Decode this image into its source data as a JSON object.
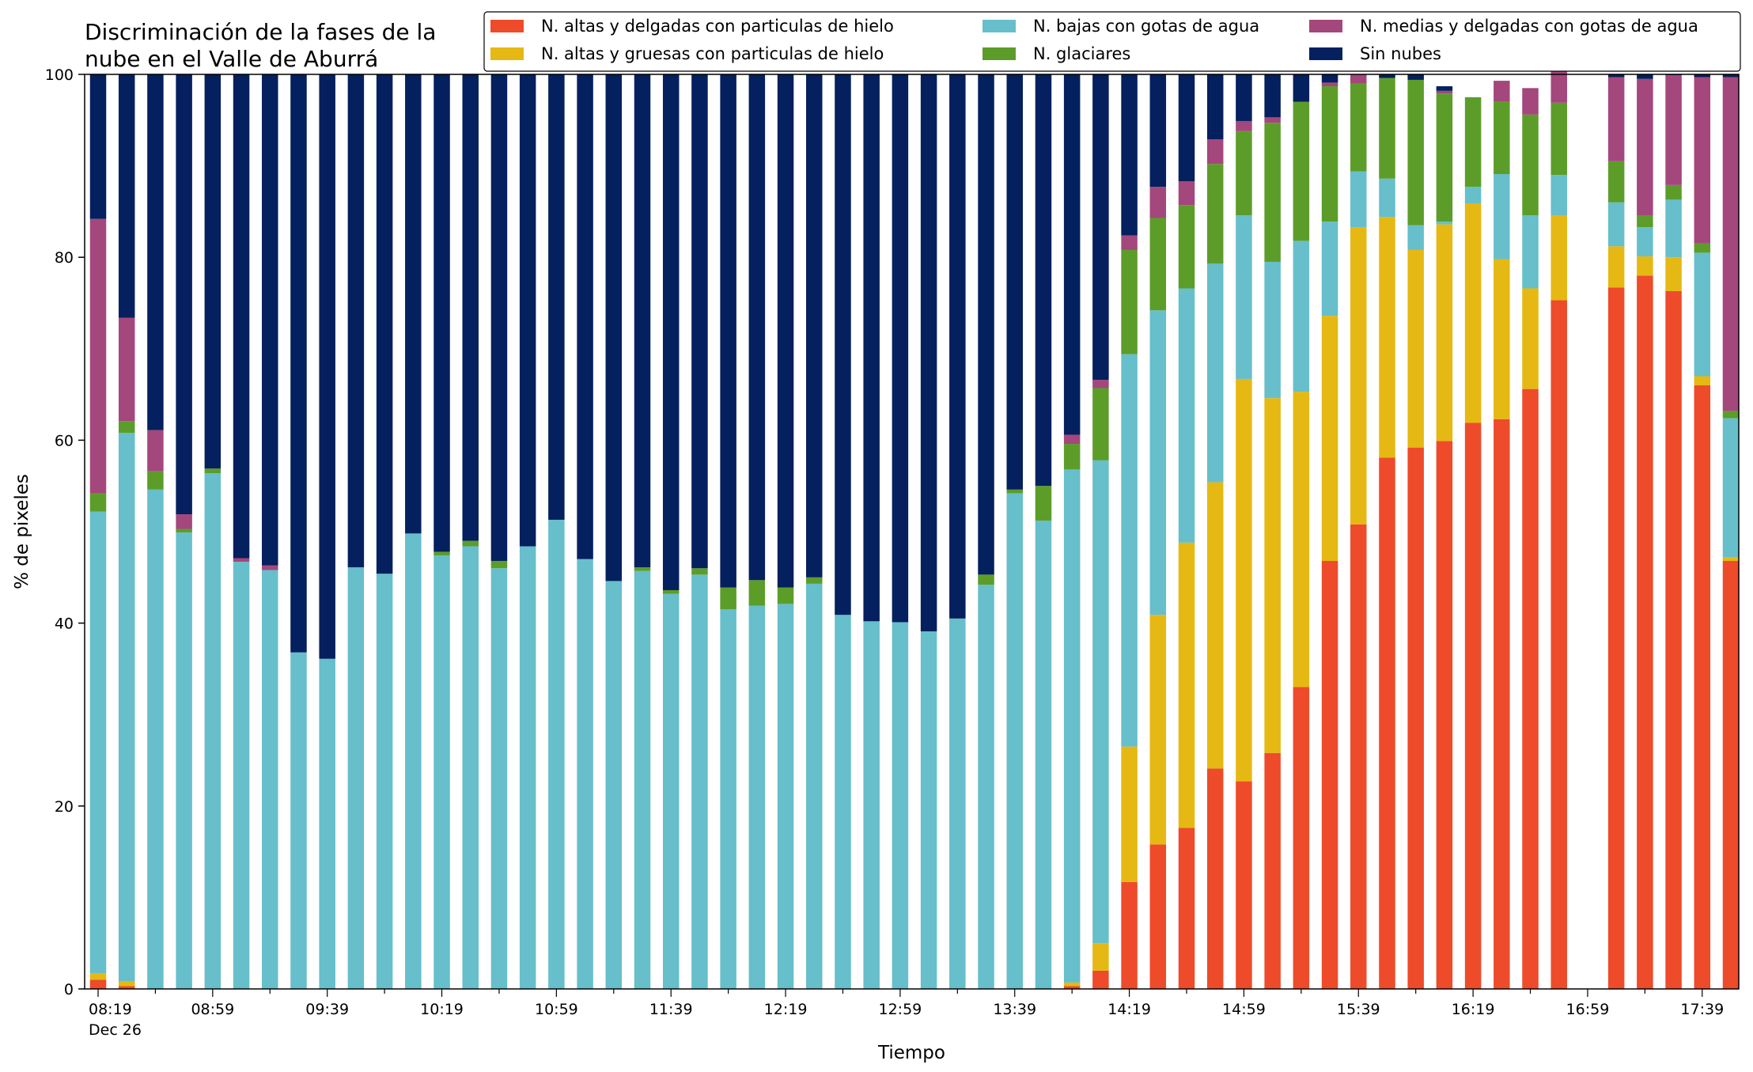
{
  "chart_data": {
    "type": "bar",
    "stacked": true,
    "title_lines": [
      "Discriminación de la fases de la",
      "nube en el Valle de Aburrá"
    ],
    "xlabel": "Tiempo",
    "ylabel": "% de pixeles",
    "ylim": [
      0,
      100
    ],
    "yticks": [
      0,
      20,
      40,
      60,
      80,
      100
    ],
    "grid": false,
    "legend_position": "top-right",
    "x_interval_minutes": 10,
    "x_start": "08:19",
    "x_end": "17:49",
    "x_tick_labels": [
      {
        "time": "08:19",
        "label": "08:19",
        "sublabel": "Dec 26"
      },
      {
        "time": "08:59",
        "label": "08:59"
      },
      {
        "time": "09:39",
        "label": "09:39"
      },
      {
        "time": "10:19",
        "label": "10:19"
      },
      {
        "time": "10:59",
        "label": "10:59"
      },
      {
        "time": "11:39",
        "label": "11:39"
      },
      {
        "time": "12:19",
        "label": "12:19"
      },
      {
        "time": "12:59",
        "label": "12:59"
      },
      {
        "time": "13:39",
        "label": "13:39"
      },
      {
        "time": "14:19",
        "label": "14:19"
      },
      {
        "time": "14:59",
        "label": "14:59"
      },
      {
        "time": "15:39",
        "label": "15:39"
      },
      {
        "time": "16:19",
        "label": "16:19"
      },
      {
        "time": "16:59",
        "label": "16:59"
      },
      {
        "time": "17:39",
        "label": "17:39"
      }
    ],
    "x": [
      "08:19",
      "08:29",
      "08:39",
      "08:49",
      "08:59",
      "09:09",
      "09:19",
      "09:29",
      "09:39",
      "09:49",
      "09:59",
      "10:09",
      "10:19",
      "10:29",
      "10:39",
      "10:49",
      "10:59",
      "11:09",
      "11:19",
      "11:29",
      "11:39",
      "11:49",
      "11:59",
      "12:09",
      "12:19",
      "12:29",
      "12:39",
      "12:49",
      "12:59",
      "13:09",
      "13:19",
      "13:29",
      "13:39",
      "13:49",
      "13:59",
      "14:09",
      "14:19",
      "14:29",
      "14:39",
      "14:49",
      "14:59",
      "15:09",
      "15:19",
      "15:29",
      "15:39",
      "15:49",
      "15:59",
      "16:09",
      "16:19",
      "16:29",
      "16:39",
      "16:49",
      "16:59",
      "17:09",
      "17:19",
      "17:29",
      "17:39",
      "17:49"
    ],
    "series": [
      {
        "name": "N. altas y delgadas con particulas de hielo",
        "color": "#ee4b2b",
        "values": [
          1,
          0.3,
          0,
          0,
          0,
          0,
          0,
          0,
          0,
          0,
          0,
          0,
          0,
          0,
          0,
          0,
          0,
          0,
          0,
          0,
          0,
          0,
          0,
          0,
          0,
          0,
          0,
          0,
          0,
          0,
          0,
          0,
          0,
          0,
          0.3,
          2,
          11.7,
          15.8,
          17.6,
          24.1,
          22.7,
          25.8,
          33.0,
          46.8,
          50.8,
          58.1,
          59.2,
          59.9,
          61.9,
          62.3,
          65.6,
          75.3,
          null,
          76.7,
          78.0,
          76.3,
          66.0,
          46.8
        ]
      },
      {
        "name": "N. altas y gruesas con particulas de hielo",
        "color": "#e6b813",
        "values": [
          0.7,
          0.5,
          0,
          0,
          0,
          0,
          0,
          0,
          0,
          0,
          0,
          0,
          0,
          0,
          0,
          0,
          0,
          0,
          0,
          0,
          0,
          0,
          0,
          0,
          0,
          0,
          0,
          0,
          0,
          0,
          0,
          0,
          0,
          0,
          0.4,
          3,
          14.8,
          25.1,
          31.2,
          31.3,
          44.0,
          38.8,
          32.3,
          26.8,
          32.5,
          26.3,
          21.6,
          23.7,
          24.0,
          17.5,
          11.0,
          9.3,
          null,
          4.5,
          2.1,
          3.7,
          1.0,
          0.4
        ]
      },
      {
        "name": "N. bajas con gotas de agua",
        "color": "#66bfcb",
        "values": [
          50.5,
          60,
          54.6,
          49.9,
          56.4,
          46.7,
          45.8,
          36.8,
          36.1,
          46.1,
          45.4,
          49.8,
          47.4,
          48.4,
          46.0,
          48.4,
          51.3,
          47.0,
          44.6,
          45.7,
          43.2,
          45.3,
          41.5,
          41.9,
          42.1,
          44.3,
          40.9,
          40.2,
          40.1,
          39.1,
          40.5,
          44.2,
          54.2,
          51.2,
          56.1,
          52.8,
          42.9,
          33.3,
          27.8,
          23.9,
          17.9,
          14.9,
          16.5,
          10.3,
          6.1,
          4.2,
          2.7,
          0.3,
          1.8,
          9.3,
          8.0,
          4.4,
          null,
          4.8,
          3.2,
          6.3,
          13.5,
          15.2
        ]
      },
      {
        "name": "N. glaciares",
        "color": "#5c9d2a",
        "values": [
          2,
          1.3,
          2,
          0.4,
          0.5,
          0,
          0,
          0,
          0,
          0,
          0,
          0,
          0.4,
          0.6,
          0.8,
          0,
          0,
          0,
          0,
          0.4,
          0.4,
          0.7,
          2.4,
          2.8,
          1.8,
          0.7,
          0,
          0,
          0,
          0,
          0,
          1.1,
          0.4,
          3.8,
          2.8,
          7.9,
          11.4,
          10.1,
          9.1,
          10.9,
          9.2,
          15.2,
          15.2,
          14.8,
          9.6,
          11.0,
          15.9,
          14.0,
          9.8,
          7.9,
          11.0,
          7.9,
          null,
          4.5,
          1.3,
          1.6,
          1.0,
          0.8
        ]
      },
      {
        "name": "N. medias y delgadas con gotas de agua",
        "color": "#a4477c",
        "values": [
          30,
          11.3,
          4.5,
          1.6,
          0,
          0.4,
          0.5,
          0,
          0,
          0,
          0,
          0,
          0,
          0,
          0,
          0,
          0,
          0,
          0,
          0,
          0,
          0,
          0,
          0,
          0,
          0,
          0,
          0,
          0,
          0,
          0,
          0,
          0,
          0,
          1.0,
          0.9,
          1.6,
          3.4,
          2.6,
          2.7,
          1.1,
          0.6,
          0,
          0.4,
          1.0,
          0,
          0,
          0.3,
          0,
          2.3,
          2.9,
          4.0,
          null,
          9.2,
          14.9,
          12.0,
          18.2,
          36.5
        ]
      },
      {
        "name": "Sin nubes",
        "color": "#04205e",
        "values": [
          15.8,
          26.6,
          38.9,
          48.1,
          43.1,
          52.9,
          53.7,
          63.2,
          63.9,
          53.9,
          54.6,
          50.2,
          52.2,
          51.0,
          53.2,
          51.6,
          48.7,
          53.0,
          55.4,
          53.9,
          56.4,
          54.0,
          56.1,
          55.3,
          56.1,
          55.0,
          59.1,
          59.8,
          59.9,
          60.9,
          59.5,
          54.7,
          45.4,
          45.0,
          39.4,
          33.4,
          17.6,
          12.3,
          11.7,
          7.1,
          5.1,
          4.7,
          3.0,
          0.9,
          0,
          0.4,
          0.6,
          0.5,
          0,
          0,
          0,
          0,
          null,
          0.3,
          0.5,
          0.1,
          0.3,
          0.3
        ]
      }
    ]
  }
}
